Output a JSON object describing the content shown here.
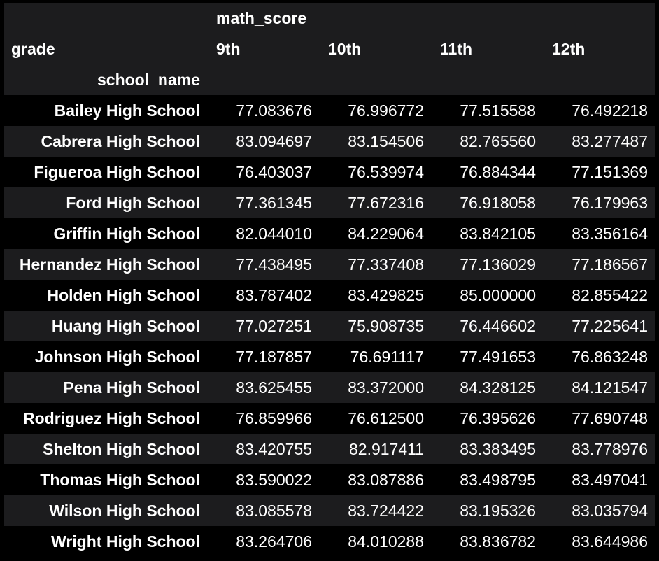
{
  "table": {
    "top_level_column": "math_score",
    "columns_axis_name": "grade",
    "index_name": "school_name",
    "grades": [
      "9th",
      "10th",
      "11th",
      "12th"
    ],
    "rows": [
      {
        "school": "Bailey High School",
        "values": [
          "77.083676",
          "76.996772",
          "77.515588",
          "76.492218"
        ]
      },
      {
        "school": "Cabrera High School",
        "values": [
          "83.094697",
          "83.154506",
          "82.765560",
          "83.277487"
        ]
      },
      {
        "school": "Figueroa High School",
        "values": [
          "76.403037",
          "76.539974",
          "76.884344",
          "77.151369"
        ]
      },
      {
        "school": "Ford High School",
        "values": [
          "77.361345",
          "77.672316",
          "76.918058",
          "76.179963"
        ]
      },
      {
        "school": "Griffin High School",
        "values": [
          "82.044010",
          "84.229064",
          "83.842105",
          "83.356164"
        ]
      },
      {
        "school": "Hernandez High School",
        "values": [
          "77.438495",
          "77.337408",
          "77.136029",
          "77.186567"
        ]
      },
      {
        "school": "Holden High School",
        "values": [
          "83.787402",
          "83.429825",
          "85.000000",
          "82.855422"
        ]
      },
      {
        "school": "Huang High School",
        "values": [
          "77.027251",
          "75.908735",
          "76.446602",
          "77.225641"
        ]
      },
      {
        "school": "Johnson High School",
        "values": [
          "77.187857",
          "76.691117",
          "77.491653",
          "76.863248"
        ]
      },
      {
        "school": "Pena High School",
        "values": [
          "83.625455",
          "83.372000",
          "84.328125",
          "84.121547"
        ]
      },
      {
        "school": "Rodriguez High School",
        "values": [
          "76.859966",
          "76.612500",
          "76.395626",
          "77.690748"
        ]
      },
      {
        "school": "Shelton High School",
        "values": [
          "83.420755",
          "82.917411",
          "83.383495",
          "83.778976"
        ]
      },
      {
        "school": "Thomas High School",
        "values": [
          "83.590022",
          "83.087886",
          "83.498795",
          "83.497041"
        ]
      },
      {
        "school": "Wilson High School",
        "values": [
          "83.085578",
          "83.724422",
          "83.195326",
          "83.035794"
        ]
      },
      {
        "school": "Wright High School",
        "values": [
          "83.264706",
          "84.010288",
          "83.836782",
          "83.644986"
        ]
      }
    ]
  },
  "colors": {
    "background": "#000000",
    "header_background": "#1c1c1e",
    "stripe_background": "#1c1c1e",
    "text": "#ffffff"
  }
}
